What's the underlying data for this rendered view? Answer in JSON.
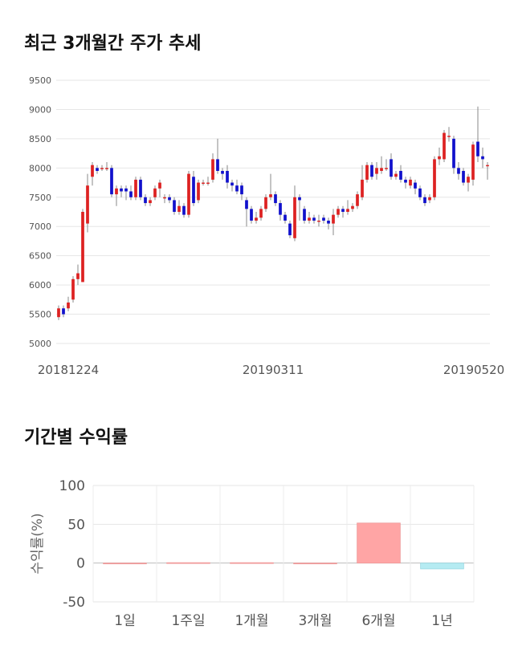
{
  "sections": {
    "price_title": "최근 3개월간 주가 추세",
    "return_title": "기간별 수익률"
  },
  "chart_data": [
    {
      "type": "candlestick",
      "title": "최근 3개월간 주가 추세",
      "ylim": [
        5000,
        9500
      ],
      "yticks": [
        5000,
        5500,
        6000,
        6500,
        7000,
        7500,
        8000,
        8500,
        9000,
        9500
      ],
      "xtick_labels": [
        "20181224",
        "20190311",
        "20190520"
      ],
      "grid": true,
      "up_color": "#dd2222",
      "down_color": "#1111cc",
      "candles": [
        [
          5450,
          5600,
          5650,
          5400
        ],
        [
          5600,
          5500,
          5650,
          5450
        ],
        [
          5600,
          5700,
          5800,
          5550
        ],
        [
          5750,
          6100,
          6150,
          5700
        ],
        [
          6100,
          6200,
          6350,
          6000
        ],
        [
          6050,
          7250,
          7300,
          6050
        ],
        [
          7050,
          7700,
          7900,
          6900
        ],
        [
          7850,
          8050,
          8100,
          7700
        ],
        [
          8000,
          7950,
          8050,
          7900
        ],
        [
          8000,
          8000,
          8050,
          7950
        ],
        [
          8000,
          8000,
          8100,
          7950
        ],
        [
          8000,
          7550,
          8050,
          7500
        ],
        [
          7550,
          7650,
          7700,
          7350
        ],
        [
          7650,
          7600,
          7700,
          7500
        ],
        [
          7650,
          7600,
          7700,
          7450
        ],
        [
          7600,
          7500,
          7700,
          7450
        ],
        [
          7500,
          7800,
          7850,
          7450
        ],
        [
          7800,
          7500,
          7850,
          7450
        ],
        [
          7500,
          7400,
          7550,
          7350
        ],
        [
          7400,
          7450,
          7500,
          7350
        ],
        [
          7500,
          7650,
          7700,
          7450
        ],
        [
          7650,
          7750,
          7800,
          7500
        ],
        [
          7500,
          7500,
          7550,
          7400
        ],
        [
          7500,
          7450,
          7550,
          7400
        ],
        [
          7450,
          7250,
          7500,
          7200
        ],
        [
          7250,
          7350,
          7450,
          7200
        ],
        [
          7350,
          7200,
          7400,
          7150
        ],
        [
          7200,
          7900,
          7950,
          7150
        ],
        [
          7850,
          7400,
          7950,
          7350
        ],
        [
          7450,
          7750,
          7800,
          7400
        ],
        [
          7750,
          7750,
          7800,
          7700
        ],
        [
          7750,
          7750,
          7850,
          7700
        ],
        [
          7800,
          8150,
          8250,
          7750
        ],
        [
          8150,
          7950,
          8500,
          7900
        ],
        [
          7950,
          7900,
          8000,
          7800
        ],
        [
          7950,
          7750,
          8050,
          7650
        ],
        [
          7750,
          7700,
          7800,
          7600
        ],
        [
          7700,
          7600,
          7800,
          7550
        ],
        [
          7700,
          7550,
          7750,
          7450
        ],
        [
          7450,
          7300,
          7500,
          7000
        ],
        [
          7300,
          7100,
          7350,
          7050
        ],
        [
          7100,
          7150,
          7250,
          7050
        ],
        [
          7150,
          7300,
          7350,
          7100
        ],
        [
          7300,
          7500,
          7550,
          7250
        ],
        [
          7500,
          7550,
          7900,
          7450
        ],
        [
          7550,
          7400,
          7600,
          7350
        ],
        [
          7400,
          7200,
          7450,
          7100
        ],
        [
          7200,
          7100,
          7250,
          7050
        ],
        [
          7050,
          6850,
          7100,
          6800
        ],
        [
          6800,
          7500,
          7700,
          6750
        ],
        [
          7500,
          7450,
          7550,
          7100
        ],
        [
          7300,
          7100,
          7350,
          7050
        ],
        [
          7100,
          7150,
          7250,
          7050
        ],
        [
          7150,
          7100,
          7200,
          7050
        ],
        [
          7100,
          7100,
          7200,
          7000
        ],
        [
          7150,
          7100,
          7200,
          7050
        ],
        [
          7100,
          7050,
          7150,
          6950
        ],
        [
          7050,
          7200,
          7300,
          6850
        ],
        [
          7200,
          7300,
          7350,
          7150
        ],
        [
          7300,
          7250,
          7350,
          7150
        ],
        [
          7250,
          7300,
          7450,
          7200
        ],
        [
          7300,
          7350,
          7400,
          7250
        ],
        [
          7350,
          7550,
          7600,
          7300
        ],
        [
          7500,
          7800,
          8050,
          7450
        ],
        [
          7800,
          8050,
          8100,
          7750
        ],
        [
          8050,
          7850,
          8100,
          7800
        ],
        [
          7900,
          8000,
          8100,
          7800
        ],
        [
          7950,
          8000,
          8200,
          7900
        ],
        [
          8000,
          8000,
          8150,
          7950
        ],
        [
          8150,
          7850,
          8250,
          7800
        ],
        [
          7850,
          7900,
          7950,
          7800
        ],
        [
          7950,
          7800,
          8050,
          7750
        ],
        [
          7800,
          7750,
          7850,
          7650
        ],
        [
          7700,
          7800,
          7850,
          7650
        ],
        [
          7750,
          7650,
          7800,
          7550
        ],
        [
          7650,
          7500,
          7700,
          7450
        ],
        [
          7500,
          7400,
          7550,
          7350
        ],
        [
          7450,
          7500,
          7550,
          7400
        ],
        [
          7500,
          8150,
          8200,
          7450
        ],
        [
          8150,
          8200,
          8350,
          8050
        ],
        [
          8150,
          8600,
          8650,
          8100
        ],
        [
          8550,
          8550,
          8700,
          8450
        ],
        [
          8500,
          8000,
          8550,
          7900
        ],
        [
          8000,
          7900,
          8100,
          7800
        ],
        [
          7950,
          7750,
          8000,
          7700
        ],
        [
          7750,
          7850,
          7900,
          7600
        ],
        [
          7800,
          8400,
          8450,
          7700
        ],
        [
          8450,
          8200,
          9050,
          8100
        ],
        [
          8200,
          8150,
          8350,
          8000
        ],
        [
          8050,
          8050,
          8100,
          7800
        ]
      ]
    },
    {
      "type": "bar",
      "title": "기간별 수익률",
      "ylabel": "수익률(%)",
      "ylim": [
        -50,
        100
      ],
      "yticks": [
        -50,
        0,
        50,
        100
      ],
      "categories": [
        "1일",
        "1주일",
        "1개월",
        "3개월",
        "6개월",
        "1년"
      ],
      "values": [
        0,
        0.5,
        0.5,
        0,
        51.6,
        -7.5
      ],
      "pos_color": "#ffa5a5",
      "neg_color": "#b5ebf2",
      "grid": true
    }
  ]
}
